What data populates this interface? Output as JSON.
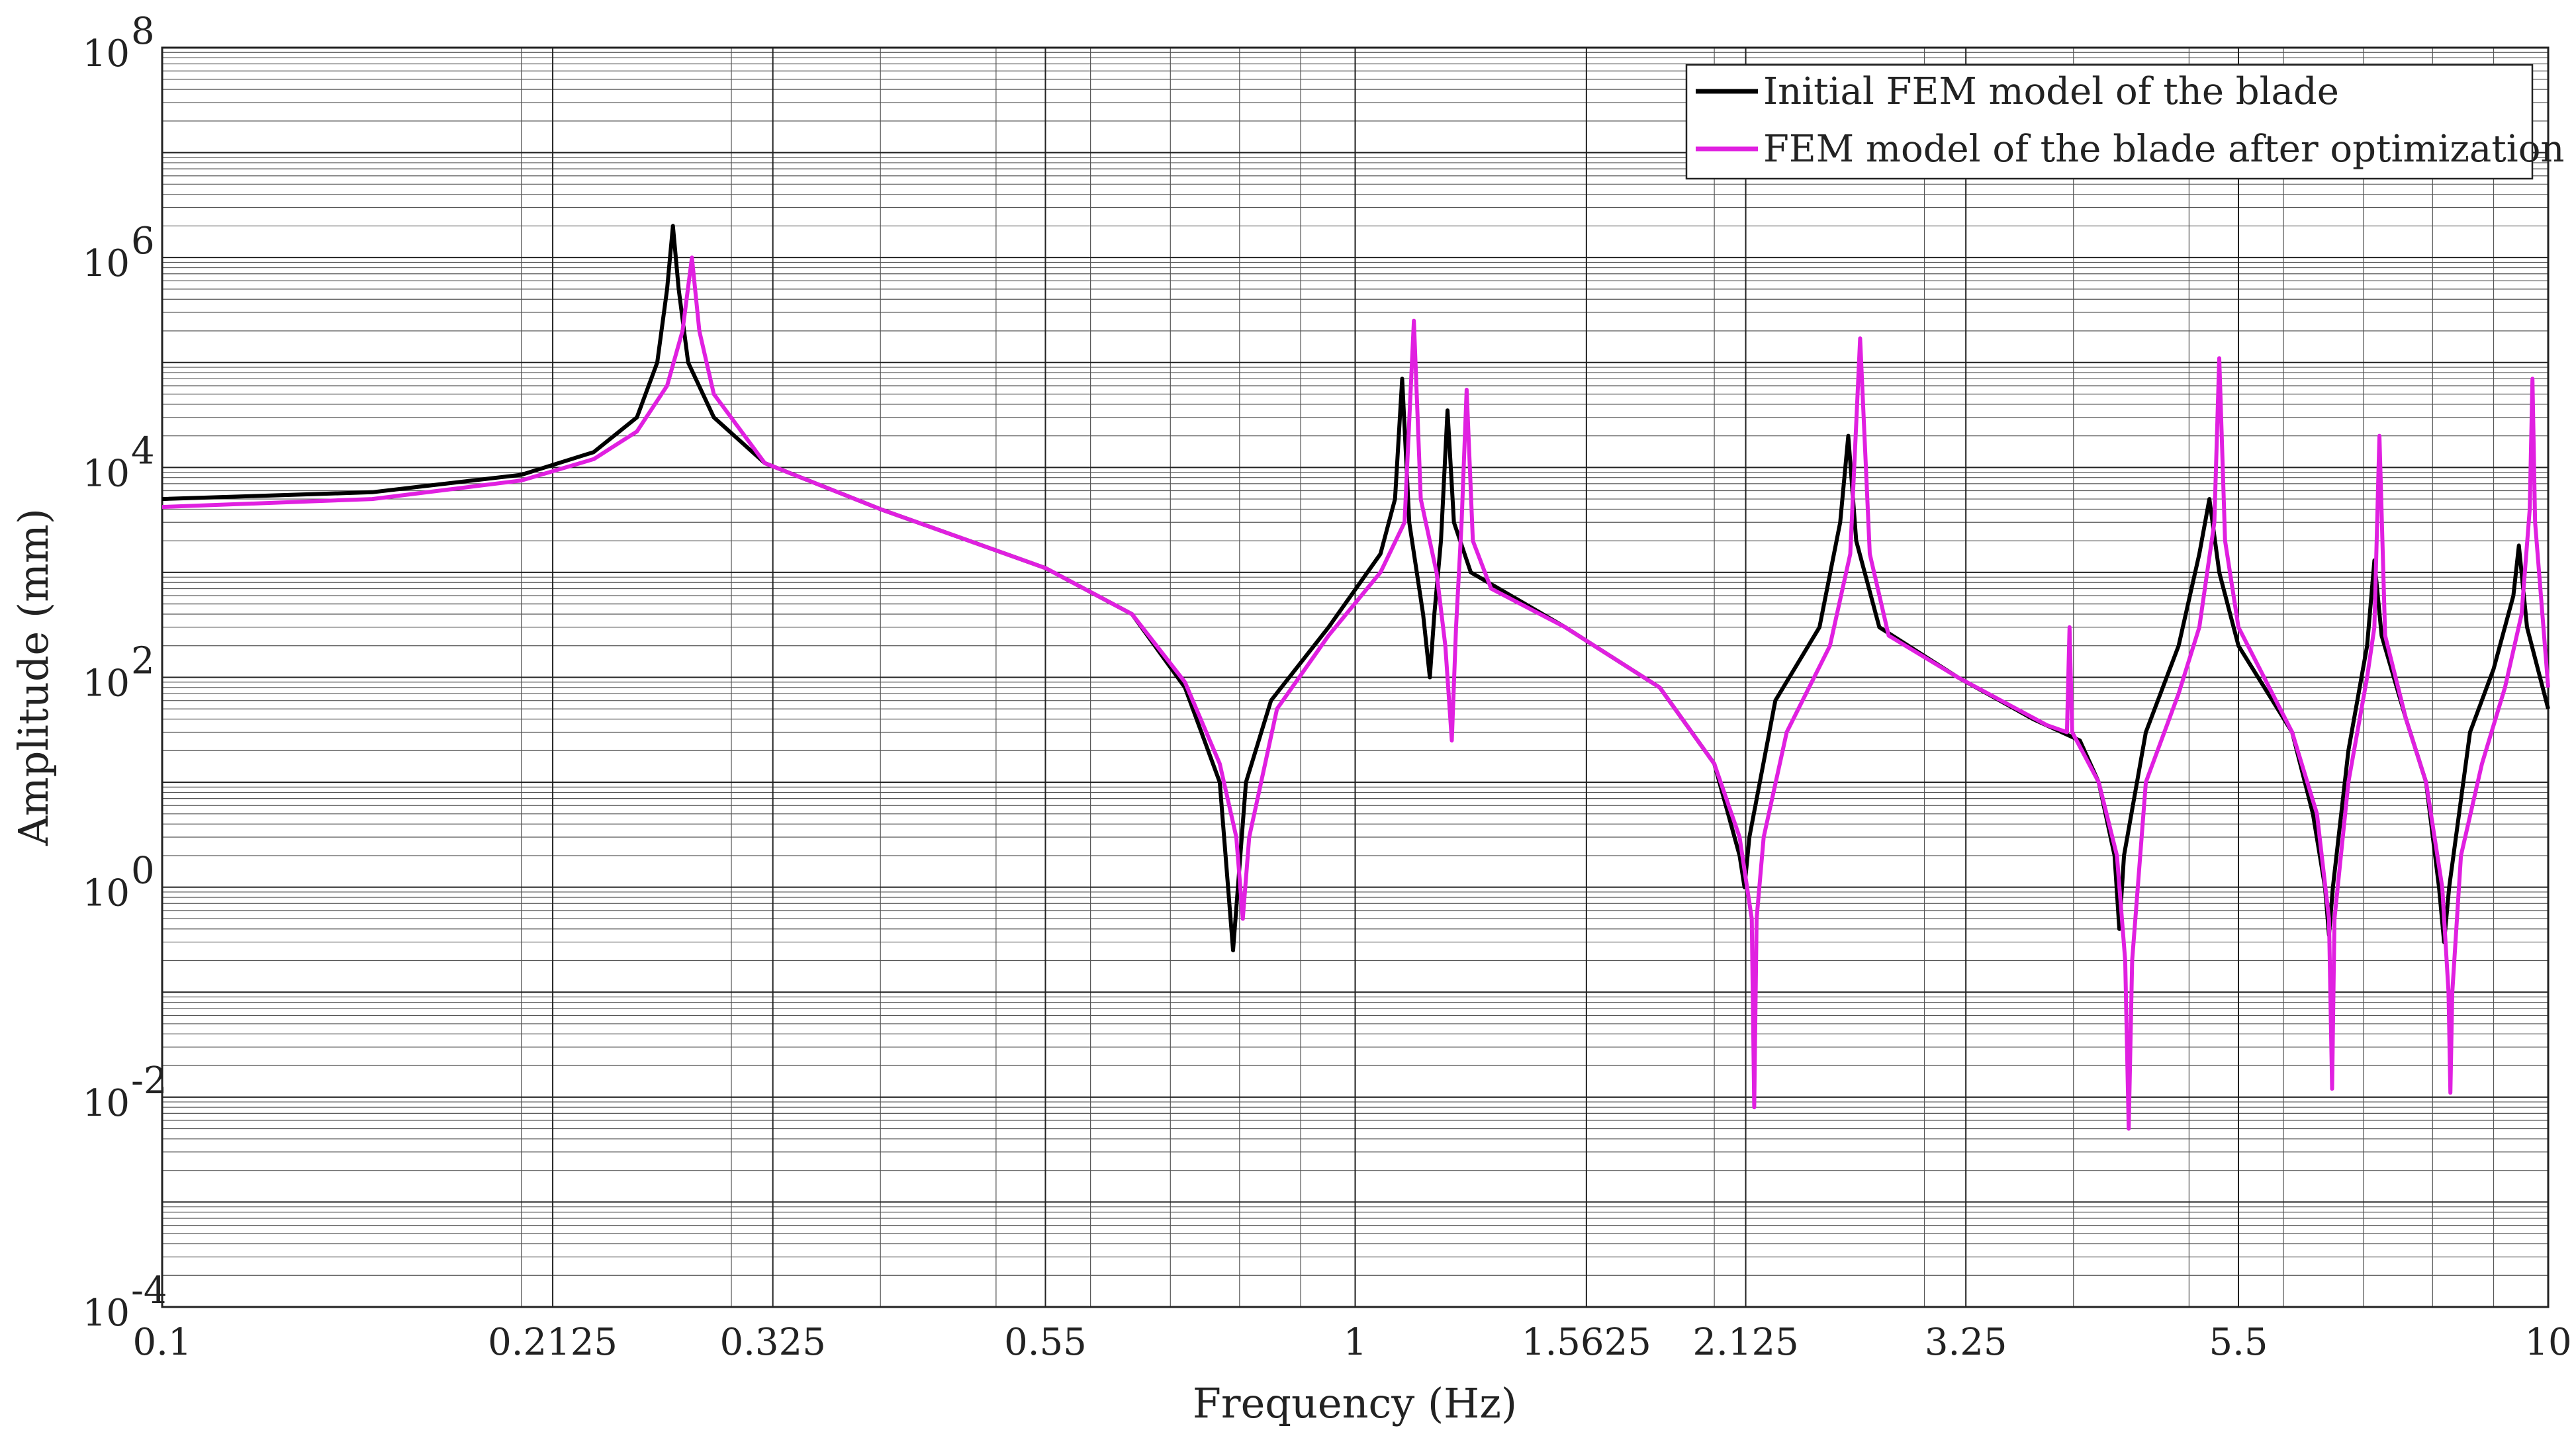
{
  "chart_data": {
    "type": "line",
    "xlabel": "Frequency  (Hz)",
    "ylabel": "Amplitude  (mm)",
    "x_scale": "log",
    "y_scale": "log",
    "xlim": [
      0.1,
      10
    ],
    "ylim": [
      0.0001,
      100000000
    ],
    "grid": true,
    "legend_position": "top-right",
    "x_ticks": [
      {
        "value": 0.1,
        "label": "0.1"
      },
      {
        "value": 0.2125,
        "label": "0.2125"
      },
      {
        "value": 0.325,
        "label": "0.325"
      },
      {
        "value": 0.55,
        "label": "0.55"
      },
      {
        "value": 1,
        "label": "1"
      },
      {
        "value": 1.5625,
        "label": "1.5625"
      },
      {
        "value": 2.125,
        "label": "2.125"
      },
      {
        "value": 3.25,
        "label": "3.25"
      },
      {
        "value": 5.5,
        "label": "5.5"
      },
      {
        "value": 10,
        "label": "10"
      }
    ],
    "y_ticks": [
      {
        "value": 0.0001,
        "base": "10",
        "exp": "-4"
      },
      {
        "value": 0.01,
        "base": "10",
        "exp": "-2"
      },
      {
        "value": 1,
        "base": "10",
        "exp": "0"
      },
      {
        "value": 100,
        "base": "10",
        "exp": "2"
      },
      {
        "value": 10000,
        "base": "10",
        "exp": "4"
      },
      {
        "value": 1000000,
        "base": "10",
        "exp": "6"
      },
      {
        "value": 100000000,
        "base": "10",
        "exp": "8"
      }
    ],
    "series": [
      {
        "name": "Initial FEM model of the blade",
        "color": "#000000",
        "points": [
          [
            0.1,
            5000
          ],
          [
            0.15,
            5800
          ],
          [
            0.2,
            8500
          ],
          [
            0.23,
            14000
          ],
          [
            0.25,
            30000
          ],
          [
            0.26,
            100000
          ],
          [
            0.265,
            500000
          ],
          [
            0.268,
            2000000
          ],
          [
            0.271,
            500000
          ],
          [
            0.276,
            100000
          ],
          [
            0.29,
            30000
          ],
          [
            0.32,
            11000
          ],
          [
            0.4,
            4000
          ],
          [
            0.55,
            1100
          ],
          [
            0.65,
            400
          ],
          [
            0.72,
            80
          ],
          [
            0.77,
            10
          ],
          [
            0.79,
            0.25
          ],
          [
            0.81,
            10
          ],
          [
            0.85,
            60
          ],
          [
            0.95,
            300
          ],
          [
            1.05,
            1500
          ],
          [
            1.08,
            5000
          ],
          [
            1.095,
            70000
          ],
          [
            1.11,
            3000
          ],
          [
            1.14,
            400
          ],
          [
            1.155,
            100
          ],
          [
            1.165,
            400
          ],
          [
            1.18,
            2000
          ],
          [
            1.195,
            35000
          ],
          [
            1.21,
            3000
          ],
          [
            1.25,
            1000
          ],
          [
            1.5,
            300
          ],
          [
            1.8,
            80
          ],
          [
            2.0,
            15
          ],
          [
            2.1,
            2
          ],
          [
            2.12,
            1
          ],
          [
            2.14,
            3
          ],
          [
            2.25,
            60
          ],
          [
            2.45,
            300
          ],
          [
            2.55,
            3000
          ],
          [
            2.59,
            20000
          ],
          [
            2.63,
            2000
          ],
          [
            2.75,
            300
          ],
          [
            3.2,
            100
          ],
          [
            3.7,
            40
          ],
          [
            4.05,
            25
          ],
          [
            4.2,
            10
          ],
          [
            4.33,
            2
          ],
          [
            4.37,
            0.4
          ],
          [
            4.41,
            2
          ],
          [
            4.6,
            30
          ],
          [
            4.9,
            200
          ],
          [
            5.1,
            1500
          ],
          [
            5.2,
            5000
          ],
          [
            5.3,
            1000
          ],
          [
            5.5,
            200
          ],
          [
            6.1,
            30
          ],
          [
            6.35,
            5
          ],
          [
            6.5,
            1
          ],
          [
            6.55,
            0.35
          ],
          [
            6.6,
            1
          ],
          [
            6.8,
            20
          ],
          [
            7.05,
            200
          ],
          [
            7.15,
            1300
          ],
          [
            7.25,
            250
          ],
          [
            7.6,
            40
          ],
          [
            7.9,
            10
          ],
          [
            8.1,
            1
          ],
          [
            8.18,
            0.3
          ],
          [
            8.26,
            1
          ],
          [
            8.6,
            30
          ],
          [
            9.0,
            120
          ],
          [
            9.35,
            600
          ],
          [
            9.45,
            1800
          ],
          [
            9.6,
            300
          ],
          [
            10,
            50
          ]
        ]
      },
      {
        "name": "FEM model of the blade after optimization",
        "color": "#e020e0",
        "points": [
          [
            0.1,
            4200
          ],
          [
            0.15,
            5000
          ],
          [
            0.2,
            7500
          ],
          [
            0.23,
            12000
          ],
          [
            0.25,
            22000
          ],
          [
            0.265,
            60000
          ],
          [
            0.273,
            200000
          ],
          [
            0.278,
            1000000
          ],
          [
            0.282,
            200000
          ],
          [
            0.29,
            50000
          ],
          [
            0.32,
            11000
          ],
          [
            0.4,
            4000
          ],
          [
            0.55,
            1100
          ],
          [
            0.65,
            400
          ],
          [
            0.72,
            90
          ],
          [
            0.77,
            15
          ],
          [
            0.795,
            3
          ],
          [
            0.805,
            0.5
          ],
          [
            0.815,
            3
          ],
          [
            0.86,
            50
          ],
          [
            0.95,
            250
          ],
          [
            1.05,
            1000
          ],
          [
            1.1,
            3000
          ],
          [
            1.12,
            250000
          ],
          [
            1.135,
            5000
          ],
          [
            1.17,
            1000
          ],
          [
            1.19,
            200
          ],
          [
            1.205,
            25
          ],
          [
            1.215,
            300
          ],
          [
            1.228,
            3000
          ],
          [
            1.24,
            55000
          ],
          [
            1.255,
            2000
          ],
          [
            1.3,
            700
          ],
          [
            1.5,
            300
          ],
          [
            1.8,
            80
          ],
          [
            2.0,
            15
          ],
          [
            2.1,
            3
          ],
          [
            2.15,
            0.5
          ],
          [
            2.16,
            0.008
          ],
          [
            2.17,
            0.5
          ],
          [
            2.2,
            3
          ],
          [
            2.3,
            30
          ],
          [
            2.5,
            200
          ],
          [
            2.6,
            1500
          ],
          [
            2.65,
            170000
          ],
          [
            2.7,
            1500
          ],
          [
            2.8,
            250
          ],
          [
            3.2,
            100
          ],
          [
            3.8,
            35
          ],
          [
            3.95,
            30
          ],
          [
            3.97,
            300
          ],
          [
            3.99,
            30
          ],
          [
            4.2,
            10
          ],
          [
            4.35,
            2
          ],
          [
            4.42,
            0.2
          ],
          [
            4.45,
            0.005
          ],
          [
            4.48,
            0.2
          ],
          [
            4.6,
            10
          ],
          [
            4.9,
            70
          ],
          [
            5.1,
            300
          ],
          [
            5.25,
            3000
          ],
          [
            5.3,
            110000
          ],
          [
            5.36,
            2000
          ],
          [
            5.5,
            300
          ],
          [
            6.1,
            30
          ],
          [
            6.4,
            5
          ],
          [
            6.55,
            0.5
          ],
          [
            6.59,
            0.012
          ],
          [
            6.62,
            0.5
          ],
          [
            6.8,
            10
          ],
          [
            7.05,
            100
          ],
          [
            7.15,
            300
          ],
          [
            7.22,
            20000
          ],
          [
            7.3,
            250
          ],
          [
            7.6,
            40
          ],
          [
            7.9,
            10
          ],
          [
            8.15,
            1
          ],
          [
            8.25,
            0.1
          ],
          [
            8.28,
            0.011
          ],
          [
            8.31,
            0.1
          ],
          [
            8.45,
            2
          ],
          [
            8.8,
            15
          ],
          [
            9.2,
            80
          ],
          [
            9.5,
            400
          ],
          [
            9.65,
            4000
          ],
          [
            9.7,
            70000
          ],
          [
            9.75,
            3000
          ],
          [
            10,
            80
          ]
        ]
      }
    ]
  }
}
